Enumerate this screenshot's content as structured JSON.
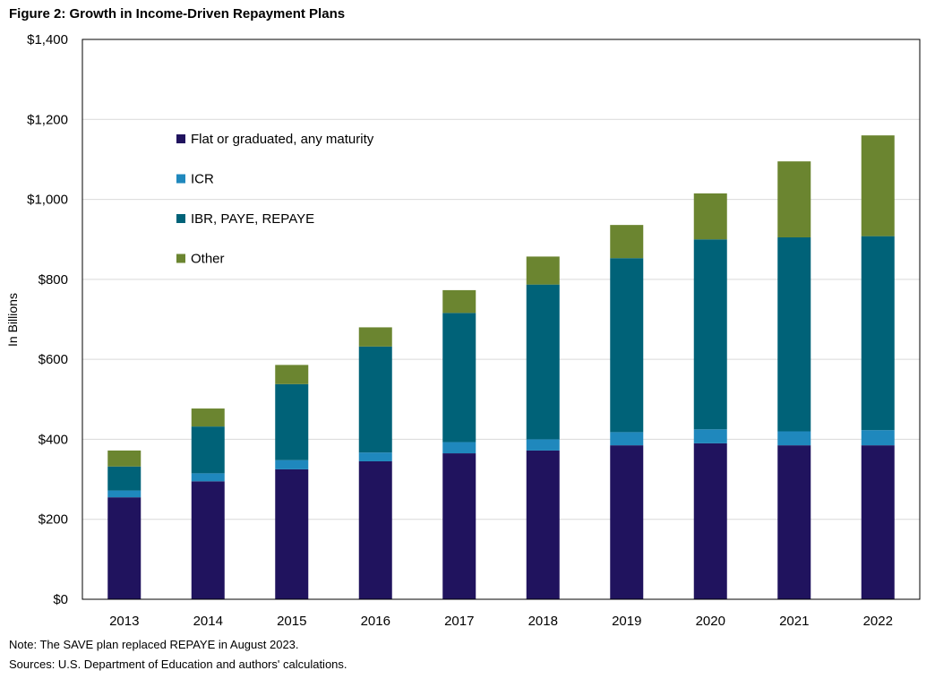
{
  "figure": {
    "title": "Figure 2: Growth in Income-Driven Repayment Plans",
    "note": "Note: The SAVE plan replaced REPAYE in August 2023.",
    "sources": "Sources: U.S. Department of Education and authors' calculations."
  },
  "chart_data": {
    "type": "bar",
    "stacked": true,
    "title": "Figure 2: Growth in Income-Driven Repayment Plans",
    "xlabel": "",
    "ylabel": "In Billions",
    "ylim": [
      0,
      1400
    ],
    "yticks": [
      0,
      200,
      400,
      600,
      800,
      1000,
      1200,
      1400
    ],
    "ytick_labels": [
      "$0",
      "$200",
      "$400",
      "$600",
      "$800",
      "$1,000",
      "$1,200",
      "$1,400"
    ],
    "grid": true,
    "legend_position": "top-left",
    "categories": [
      "2013",
      "2014",
      "2015",
      "2016",
      "2017",
      "2018",
      "2019",
      "2020",
      "2021",
      "2022"
    ],
    "series": [
      {
        "name": "Flat or graduated, any maturity",
        "color": "#20135e",
        "values": [
          255,
          295,
          325,
          345,
          365,
          372,
          385,
          390,
          385,
          385
        ]
      },
      {
        "name": "ICR",
        "color": "#1f88bd",
        "values": [
          17,
          20,
          23,
          22,
          28,
          28,
          33,
          35,
          35,
          38
        ]
      },
      {
        "name": "IBR, PAYE, REPAYE",
        "color": "#006278",
        "values": [
          60,
          117,
          190,
          265,
          323,
          387,
          435,
          475,
          485,
          485
        ]
      },
      {
        "name": "Other",
        "color": "#6b8530",
        "values": [
          40,
          45,
          48,
          48,
          57,
          70,
          83,
          115,
          190,
          252
        ]
      }
    ]
  }
}
